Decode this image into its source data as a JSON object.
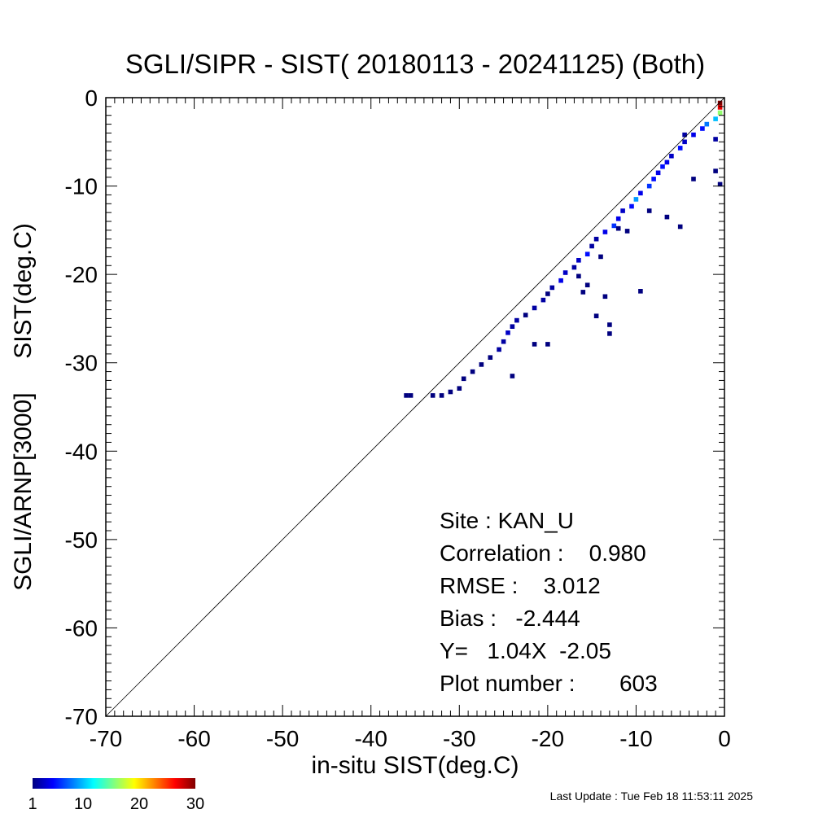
{
  "chart_data": {
    "type": "heatmap",
    "title": "SGLI/SIPR - SIST( 20180113 - 20241125) (Both)",
    "xlabel": "in-situ SIST(deg.C)",
    "ylabel": "SGLI/ARNP[3000]     SIST(deg.C)",
    "xlim": [
      -70,
      0
    ],
    "ylim": [
      -70,
      0
    ],
    "xticks": [
      "-70",
      "-60",
      "-50",
      "-40",
      "-30",
      "-20",
      "-10",
      "0"
    ],
    "yticks": [
      "-70",
      "-60",
      "-50",
      "-40",
      "-30",
      "-20",
      "-10",
      "0"
    ],
    "grid": false,
    "reference_line": "1:1 diagonal",
    "colorbar": {
      "range": [
        1,
        30
      ],
      "ticks": [
        "1",
        "10",
        "20",
        "30"
      ],
      "colors": [
        "#00007f",
        "#0000ff",
        "#0080ff",
        "#00ffff",
        "#80ff80",
        "#ffff00",
        "#ff8000",
        "#ff0000",
        "#800000"
      ]
    },
    "cells": [
      [
        -36,
        -33.7,
        1
      ],
      [
        -35.5,
        -33.7,
        1
      ],
      [
        -33,
        -33.7,
        1
      ],
      [
        -32,
        -33.7,
        1
      ],
      [
        -31,
        -33.3,
        1
      ],
      [
        -30,
        -32.9,
        1
      ],
      [
        -29.5,
        -31.8,
        1
      ],
      [
        -28.5,
        -31,
        1
      ],
      [
        -27.5,
        -30.2,
        1
      ],
      [
        -26.5,
        -29.4,
        1
      ],
      [
        -25.5,
        -28.5,
        2
      ],
      [
        -25,
        -27.6,
        2
      ],
      [
        -24.5,
        -26.6,
        3
      ],
      [
        -24,
        -25.9,
        2
      ],
      [
        -23.5,
        -25.2,
        2
      ],
      [
        -22.5,
        -24.6,
        1
      ],
      [
        -21.5,
        -23.8,
        2
      ],
      [
        -20.5,
        -22.9,
        2
      ],
      [
        -20,
        -22.2,
        1
      ],
      [
        -19.5,
        -21.5,
        2
      ],
      [
        -18.5,
        -20.7,
        4
      ],
      [
        -18,
        -19.8,
        3
      ],
      [
        -17,
        -19.2,
        2
      ],
      [
        -16.5,
        -18.4,
        3
      ],
      [
        -15.5,
        -17.7,
        5
      ],
      [
        -15,
        -16.8,
        2
      ],
      [
        -14.5,
        -16,
        2
      ],
      [
        -13.5,
        -15.2,
        4
      ],
      [
        -12.5,
        -14.5,
        6
      ],
      [
        -12,
        -13.7,
        4
      ],
      [
        -11.5,
        -12.8,
        3
      ],
      [
        -10.5,
        -12.3,
        5
      ],
      [
        -10,
        -11.5,
        9
      ],
      [
        -9.5,
        -10.8,
        4
      ],
      [
        -8.5,
        -10,
        6
      ],
      [
        -8,
        -9.2,
        5
      ],
      [
        -7.5,
        -8.5,
        4
      ],
      [
        -7,
        -7.8,
        5
      ],
      [
        -6.5,
        -7.3,
        4
      ],
      [
        -6,
        -6.6,
        3
      ],
      [
        -5,
        -5.7,
        5
      ],
      [
        -4.5,
        -5,
        3
      ],
      [
        -3.5,
        -4.2,
        4
      ],
      [
        -2.5,
        -3.5,
        5
      ],
      [
        -2,
        -3,
        8
      ],
      [
        -1,
        -2.4,
        10
      ],
      [
        -0.5,
        -1.7,
        16
      ],
      [
        -0.5,
        -1.1,
        27
      ],
      [
        -0.5,
        -0.6,
        30
      ],
      [
        -4.5,
        -4.2,
        2
      ],
      [
        -12,
        -14.8,
        1
      ],
      [
        -11,
        -15.1,
        1
      ],
      [
        -14,
        -18,
        1
      ],
      [
        -16.5,
        -20.2,
        1
      ],
      [
        -16,
        -22,
        1
      ],
      [
        -9.5,
        -21.9,
        1
      ],
      [
        -13.5,
        -22.5,
        1
      ],
      [
        -14.5,
        -24.7,
        1
      ],
      [
        -13,
        -25.7,
        1
      ],
      [
        -13,
        -26.7,
        1
      ],
      [
        -20,
        -27.9,
        1
      ],
      [
        -21.5,
        -27.9,
        1
      ],
      [
        -24,
        -31.5,
        1
      ],
      [
        -5,
        -14.6,
        1
      ],
      [
        -3.5,
        -9.2,
        1
      ],
      [
        -1,
        -8.3,
        1
      ],
      [
        -0.5,
        -9.8,
        1
      ],
      [
        -6.5,
        -13.5,
        1
      ],
      [
        -8.5,
        -12.8,
        1
      ],
      [
        -1,
        -4.7,
        2
      ],
      [
        -15.5,
        -21.2,
        1
      ]
    ],
    "annotations": [
      {
        "key": "site",
        "text": "Site : KAN_U"
      },
      {
        "key": "correlation",
        "text": "Correlation :    0.980"
      },
      {
        "key": "rmse",
        "text": "RMSE :    3.012"
      },
      {
        "key": "bias",
        "text": "Bias :   -2.444"
      },
      {
        "key": "fit",
        "text": "Y=   1.04X  -2.05"
      },
      {
        "key": "plot_number",
        "text": "Plot number :       603"
      }
    ]
  },
  "footer": {
    "last_update": "Last Update : Tue Feb 18 11:53:11 2025"
  }
}
